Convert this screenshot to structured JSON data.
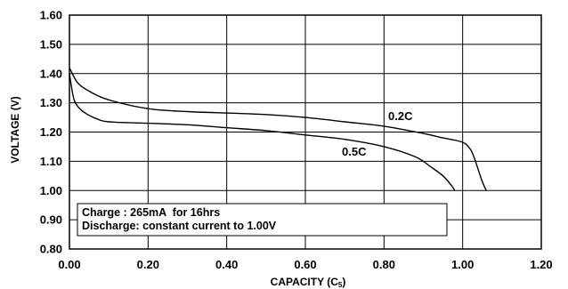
{
  "chart_data": {
    "type": "line",
    "xlabel": "CAPACITY (C",
    "xlabel_sub": "5",
    "xlabel_close": ")",
    "ylabel": "VOLTAGE (V)",
    "xlim": [
      0.0,
      1.2
    ],
    "ylim": [
      0.8,
      1.6
    ],
    "x_ticks": [
      "0.00",
      "0.20",
      "0.40",
      "0.60",
      "0.80",
      "1.00",
      "1.20"
    ],
    "y_ticks": [
      "0.80",
      "0.90",
      "1.00",
      "1.10",
      "1.20",
      "1.30",
      "1.40",
      "1.50",
      "1.60"
    ],
    "grid": true,
    "series": [
      {
        "name": "0.2C",
        "x": [
          0.0,
          0.02,
          0.05,
          0.1,
          0.2,
          0.3,
          0.4,
          0.5,
          0.6,
          0.7,
          0.8,
          0.9,
          0.95,
          1.0,
          1.02,
          1.03,
          1.04,
          1.05,
          1.06
        ],
        "y": [
          1.42,
          1.37,
          1.34,
          1.31,
          1.28,
          1.27,
          1.265,
          1.26,
          1.25,
          1.235,
          1.22,
          1.195,
          1.18,
          1.165,
          1.14,
          1.11,
          1.07,
          1.03,
          1.0
        ]
      },
      {
        "name": "0.5C",
        "x": [
          0.0,
          0.01,
          0.02,
          0.04,
          0.07,
          0.1,
          0.2,
          0.3,
          0.4,
          0.5,
          0.6,
          0.7,
          0.8,
          0.88,
          0.92,
          0.95,
          0.97,
          0.98
        ],
        "y": [
          1.4,
          1.32,
          1.29,
          1.265,
          1.245,
          1.235,
          1.23,
          1.225,
          1.215,
          1.205,
          1.19,
          1.175,
          1.15,
          1.115,
          1.08,
          1.05,
          1.02,
          1.0
        ]
      }
    ],
    "annotation": [
      "Charge : 265mA  for 16hrs",
      "Discharge: constant current to 1.00V"
    ]
  }
}
